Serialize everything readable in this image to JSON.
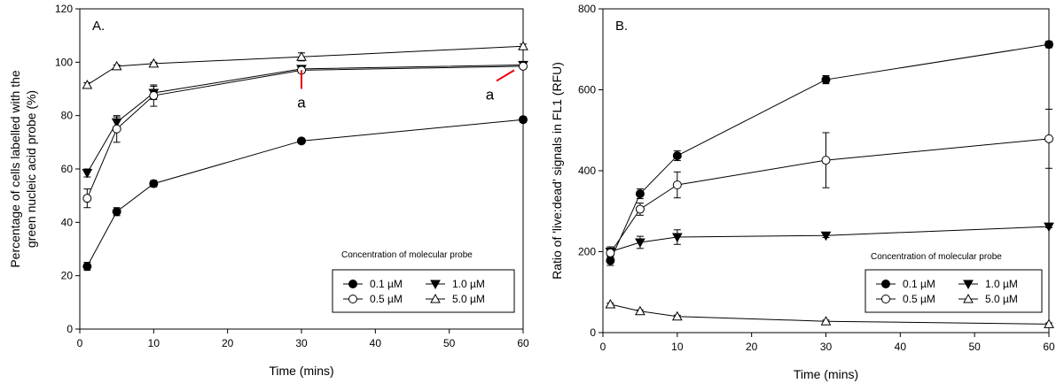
{
  "chart_data": [
    {
      "type": "line",
      "panel_label": "A.",
      "xlabel": "Time (mins)",
      "ylabel_lines": [
        "Percentage of cells labelled with the",
        "green nucleic acid probe (%)"
      ],
      "xlim": [
        0,
        60
      ],
      "ylim": [
        0,
        120
      ],
      "xticks": [
        0,
        10,
        20,
        30,
        40,
        50,
        60
      ],
      "yticks": [
        0,
        20,
        40,
        60,
        80,
        100,
        120
      ],
      "legend_title": "Concentration of molecular probe",
      "legend_placement": "bottom-right",
      "x": [
        1,
        5,
        10,
        30,
        60
      ],
      "series": [
        {
          "name": "0.1 µM",
          "marker": "filled-circle",
          "values": [
            23.5,
            44,
            54.5,
            70.5,
            78.5
          ],
          "errors": [
            1.5,
            1.5,
            1.2,
            0.8,
            1
          ]
        },
        {
          "name": "1.0 µM",
          "marker": "filled-triangle-down",
          "values": [
            58.5,
            77.5,
            88.5,
            97.5,
            99
          ],
          "errors": [
            1.5,
            2,
            2.5,
            1,
            0.5
          ]
        },
        {
          "name": "0.5 µM",
          "marker": "open-circle",
          "values": [
            49,
            75,
            87.5,
            97,
            98.5
          ],
          "errors": [
            3.5,
            5,
            4,
            1,
            0.5
          ]
        },
        {
          "name": "5.0 µM",
          "marker": "open-triangle-up",
          "values": [
            91.5,
            98.5,
            99.5,
            102,
            106
          ],
          "errors": [
            0.8,
            0.5,
            0.5,
            1.5,
            0.8
          ]
        }
      ],
      "annotations": [
        {
          "text": "a",
          "x": 30,
          "y": 83,
          "arrow_to": [
            30,
            97
          ]
        },
        {
          "text": "a",
          "x": 55.5,
          "y": 86,
          "arrow_to": [
            58.8,
            97
          ]
        }
      ],
      "accent_color": "#e8000b"
    },
    {
      "type": "line",
      "panel_label": "B.",
      "xlabel": "Time (mins)",
      "ylabel_lines": [
        "Ratio of 'live:dead' signals in FL1 (RFU)"
      ],
      "xlim": [
        0,
        60
      ],
      "ylim": [
        0,
        800
      ],
      "xticks": [
        0,
        10,
        20,
        30,
        40,
        50,
        60
      ],
      "yticks": [
        0,
        200,
        400,
        600,
        800
      ],
      "legend_title": "Concentration of molecular probe",
      "legend_placement": "bottom-right",
      "x": [
        1,
        5,
        10,
        30,
        60
      ],
      "series": [
        {
          "name": "0.1 µM",
          "marker": "filled-circle",
          "values": [
            178,
            343,
            437,
            625,
            712
          ],
          "errors": [
            12,
            12,
            12,
            10,
            8
          ]
        },
        {
          "name": "1.0 µM",
          "marker": "filled-triangle-down",
          "values": [
            200,
            223,
            236,
            240,
            262
          ],
          "errors": [
            12,
            15,
            18,
            5,
            3
          ]
        },
        {
          "name": "0.5 µM",
          "marker": "open-circle",
          "values": [
            197,
            305,
            365,
            426,
            479
          ],
          "errors": [
            12,
            15,
            32,
            68,
            73
          ]
        },
        {
          "name": "5.0 µM",
          "marker": "open-triangle-up",
          "values": [
            70,
            53,
            40,
            28,
            21
          ],
          "errors": [
            3,
            3,
            3,
            3,
            3
          ]
        }
      ],
      "annotations": []
    }
  ]
}
